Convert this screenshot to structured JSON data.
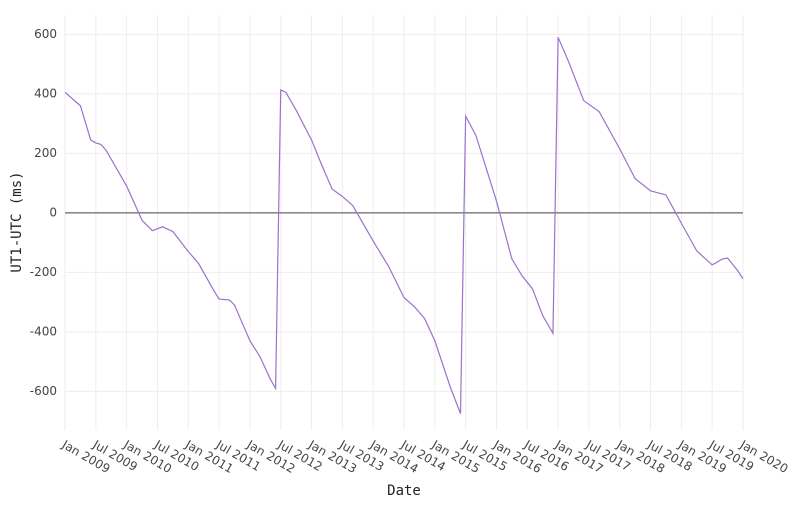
{
  "chart_data": {
    "type": "line",
    "x_label": "Date",
    "y_label": "UT1-UTC (ms)",
    "x": [
      "2009-01",
      "2009-04",
      "2009-06",
      "2009-07",
      "2009-08",
      "2009-09",
      "2010-01",
      "2010-04",
      "2010-06",
      "2010-08",
      "2010-10",
      "2011-01",
      "2011-03",
      "2011-06",
      "2011-07",
      "2011-09",
      "2011-10",
      "2012-01",
      "2012-03",
      "2012-05",
      "2012-06",
      "2012-07",
      "2012-08",
      "2012-10",
      "2013-01",
      "2013-03",
      "2013-05",
      "2013-07",
      "2013-09",
      "2014-01",
      "2014-04",
      "2014-07",
      "2014-09",
      "2014-11",
      "2015-01",
      "2015-04",
      "2015-06",
      "2015-07",
      "2015-09",
      "2016-01",
      "2016-04",
      "2016-06",
      "2016-08",
      "2016-10",
      "2016-12",
      "2017-01",
      "2017-03",
      "2017-06",
      "2017-09",
      "2018-01",
      "2018-04",
      "2018-07",
      "2018-10",
      "2019-01",
      "2019-04",
      "2019-07",
      "2019-09",
      "2019-10",
      "2019-12",
      "2020-01"
    ],
    "series": [
      {
        "name": "UT1-UTC",
        "color": "#9a72cc",
        "values": [
          405,
          360,
          245,
          235,
          230,
          210,
          90,
          -25,
          -60,
          -47,
          -63,
          -130,
          -170,
          -262,
          -290,
          -293,
          -310,
          -430,
          -485,
          -560,
          -590,
          413,
          405,
          345,
          245,
          160,
          80,
          55,
          25,
          -95,
          -180,
          -285,
          -315,
          -355,
          -430,
          -585,
          -675,
          325,
          260,
          40,
          -155,
          -212,
          -255,
          -345,
          -405,
          590,
          510,
          377,
          340,
          215,
          115,
          74,
          60,
          -35,
          -128,
          -175,
          -155,
          -152,
          -195,
          -222
        ]
      }
    ],
    "xlim": [
      "2009-01",
      "2020-01"
    ],
    "xticks": [
      {
        "value": "2009-01",
        "label": "Jan 2009"
      },
      {
        "value": "2009-07",
        "label": "Jul 2009"
      },
      {
        "value": "2010-01",
        "label": "Jan 2010"
      },
      {
        "value": "2010-07",
        "label": "Jul 2010"
      },
      {
        "value": "2011-01",
        "label": "Jan 2011"
      },
      {
        "value": "2011-07",
        "label": "Jul 2011"
      },
      {
        "value": "2012-01",
        "label": "Jan 2012"
      },
      {
        "value": "2012-07",
        "label": "Jul 2012"
      },
      {
        "value": "2013-01",
        "label": "Jan 2013"
      },
      {
        "value": "2013-07",
        "label": "Jul 2013"
      },
      {
        "value": "2014-01",
        "label": "Jan 2014"
      },
      {
        "value": "2014-07",
        "label": "Jul 2014"
      },
      {
        "value": "2015-01",
        "label": "Jan 2015"
      },
      {
        "value": "2015-07",
        "label": "Jul 2015"
      },
      {
        "value": "2016-01",
        "label": "Jan 2016"
      },
      {
        "value": "2016-07",
        "label": "Jul 2016"
      },
      {
        "value": "2017-01",
        "label": "Jan 2017"
      },
      {
        "value": "2017-07",
        "label": "Jul 2017"
      },
      {
        "value": "2018-01",
        "label": "Jan 2018"
      },
      {
        "value": "2018-07",
        "label": "Jul 2018"
      },
      {
        "value": "2019-01",
        "label": "Jan 2019"
      },
      {
        "value": "2019-07",
        "label": "Jul 2019"
      },
      {
        "value": "2020-01",
        "label": "Jan 2020"
      }
    ],
    "ylim": [
      -730,
      665
    ],
    "yticks": [
      -600,
      -400,
      -200,
      0,
      200,
      400,
      600
    ],
    "grid": true,
    "zeroline": true
  }
}
